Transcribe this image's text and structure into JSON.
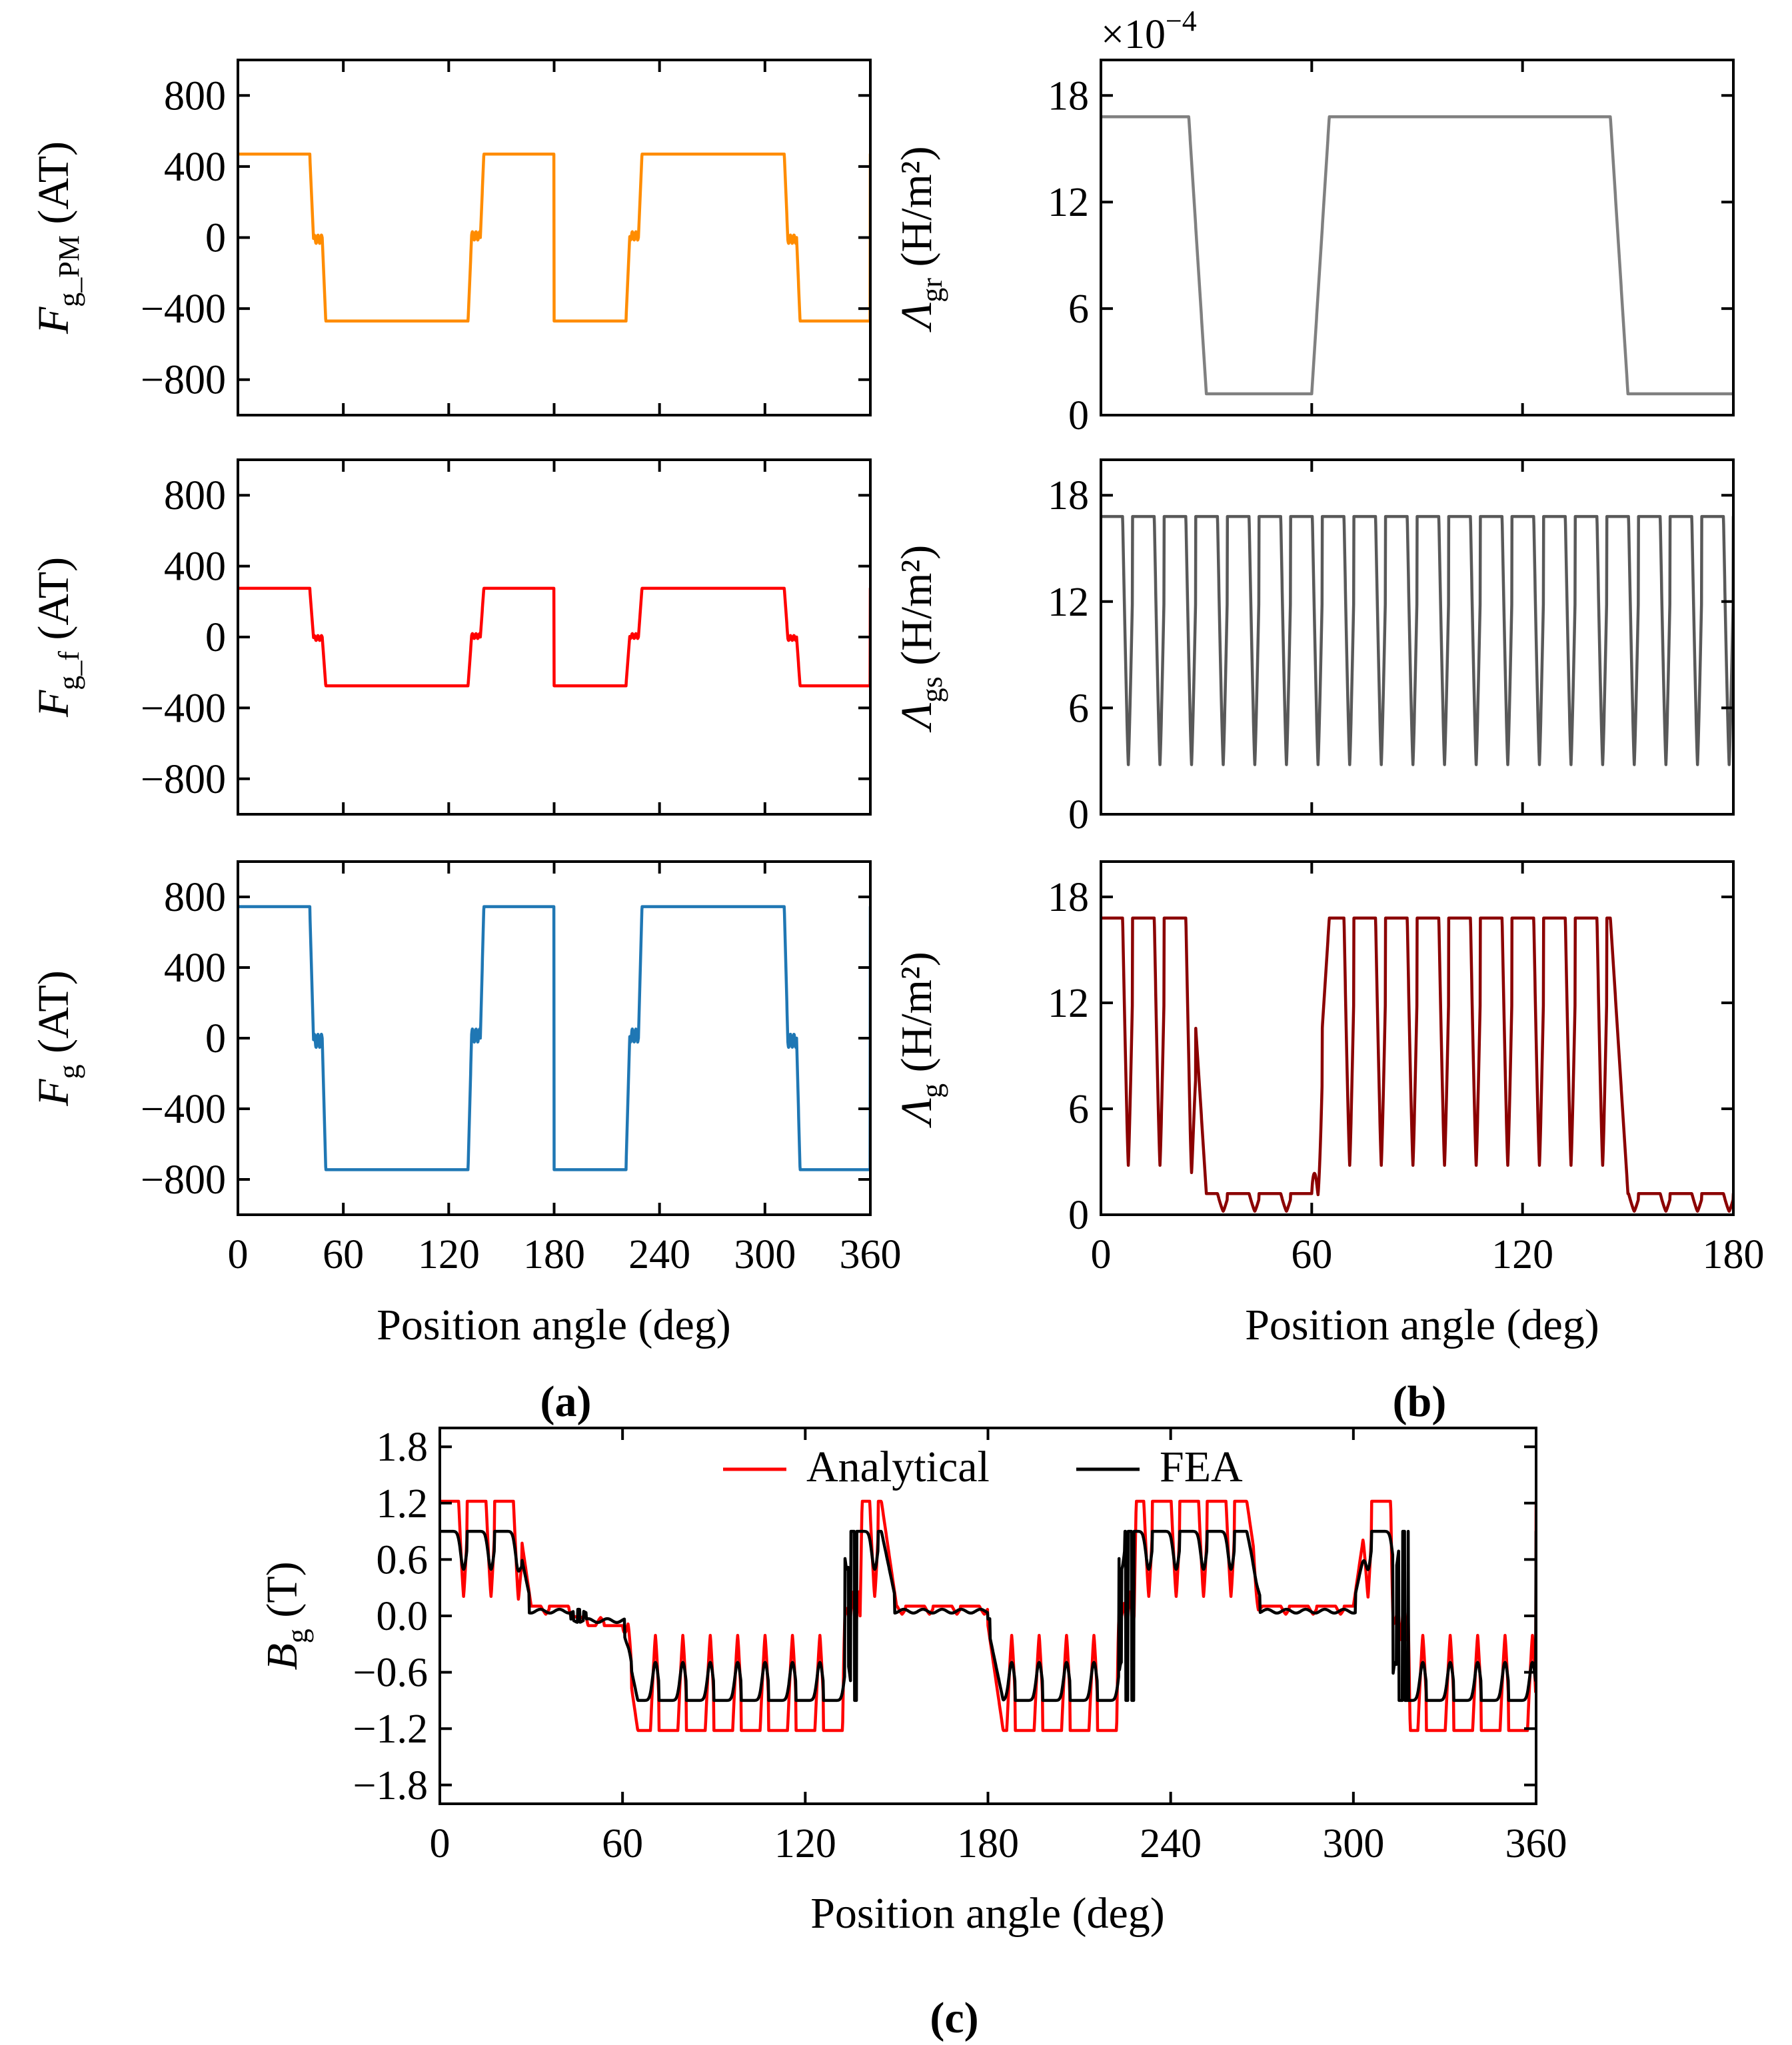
{
  "figure": {
    "panel_labels": [
      "(a)",
      "(b)",
      "(c)"
    ],
    "x_axis_label": "Position angle (deg)"
  },
  "chart_data": [
    {
      "id": "a1",
      "type": "line",
      "ylabel_main": "F",
      "ylabel_sub": "g_PM",
      "ylabel_unit": "(AT)",
      "xlim": [
        0,
        360
      ],
      "ylim": [
        -1000,
        1000
      ],
      "xticks": [
        0,
        60,
        120,
        180,
        240,
        300,
        360
      ],
      "show_xticklabels": false,
      "yticks": [
        -800,
        -400,
        0,
        400,
        800
      ],
      "ytick_labels": [
        "−800",
        "−400",
        "0",
        "400",
        "800"
      ],
      "color": "#ff8c00",
      "series": [
        {
          "name": "F_g_PM",
          "shape": "mmf",
          "amplitude": 470
        }
      ]
    },
    {
      "id": "a2",
      "type": "line",
      "ylabel_main": "F",
      "ylabel_sub": "g_f",
      "ylabel_unit": "(AT)",
      "xlim": [
        0,
        360
      ],
      "ylim": [
        -1000,
        1000
      ],
      "xticks": [
        0,
        60,
        120,
        180,
        240,
        300,
        360
      ],
      "show_xticklabels": false,
      "yticks": [
        -800,
        -400,
        0,
        400,
        800
      ],
      "ytick_labels": [
        "−800",
        "−400",
        "0",
        "400",
        "800"
      ],
      "color": "#ff0000",
      "series": [
        {
          "name": "F_g_f",
          "shape": "mmf",
          "amplitude": 275
        }
      ]
    },
    {
      "id": "a3",
      "type": "line",
      "ylabel_main": "F",
      "ylabel_sub": "g",
      "ylabel_unit": "(AT)",
      "xlim": [
        0,
        360
      ],
      "ylim": [
        -1000,
        1000
      ],
      "xticks": [
        0,
        60,
        120,
        180,
        240,
        300,
        360
      ],
      "show_xticklabels": true,
      "xtick_labels": [
        "0",
        "60",
        "120",
        "180",
        "240",
        "300",
        "360"
      ],
      "yticks": [
        -800,
        -400,
        0,
        400,
        800
      ],
      "ytick_labels": [
        "−800",
        "−400",
        "0",
        "400",
        "800"
      ],
      "color": "#1f77b4",
      "series": [
        {
          "name": "F_g",
          "shape": "mmf",
          "amplitude": 745
        }
      ]
    },
    {
      "id": "b1",
      "type": "line",
      "ylabel_main": "Λ",
      "ylabel_sub": "gr",
      "ylabel_unit": "(H/m²)",
      "multiplier_text": "×10",
      "multiplier_exp": "−4",
      "xlim": [
        0,
        180
      ],
      "ylim": [
        0,
        20
      ],
      "xticks": [
        0,
        60,
        120,
        180
      ],
      "show_xticklabels": false,
      "yticks": [
        0,
        6,
        12,
        18
      ],
      "ytick_labels": [
        "0",
        "6",
        "12",
        "18"
      ],
      "color": "#808080",
      "series": [
        {
          "name": "Λ_gr",
          "shape": "rotor_permeance",
          "high": 16.8,
          "low": 1.2
        }
      ]
    },
    {
      "id": "b2",
      "type": "line",
      "ylabel_main": "Λ",
      "ylabel_sub": "gs",
      "ylabel_unit": "(H/m²)",
      "xlim": [
        0,
        180
      ],
      "ylim": [
        0,
        20
      ],
      "xticks": [
        0,
        60,
        120,
        180
      ],
      "show_xticklabels": false,
      "yticks": [
        0,
        6,
        12,
        18
      ],
      "ytick_labels": [
        "0",
        "6",
        "12",
        "18"
      ],
      "color": "#595959",
      "series": [
        {
          "name": "Λ_gs",
          "shape": "stator_permeance",
          "high": 16.8,
          "low": 2.8,
          "slot_pitch": 9
        }
      ]
    },
    {
      "id": "b3",
      "type": "line",
      "ylabel_main": "Λ",
      "ylabel_sub": "g",
      "ylabel_unit": "(H/m²)",
      "xlim": [
        0,
        180
      ],
      "ylim": [
        0,
        20
      ],
      "xticks": [
        0,
        60,
        120,
        180
      ],
      "show_xticklabels": true,
      "xtick_labels": [
        "0",
        "60",
        "120",
        "180"
      ],
      "yticks": [
        0,
        6,
        12,
        18
      ],
      "ytick_labels": [
        "0",
        "6",
        "12",
        "18"
      ],
      "color": "#8b0000",
      "series": [
        {
          "name": "Λ_g",
          "shape": "product_permeance"
        }
      ]
    },
    {
      "id": "c",
      "type": "line",
      "ylabel_main": "B",
      "ylabel_sub": "g",
      "ylabel_unit": "(T)",
      "xlim": [
        0,
        360
      ],
      "ylim": [
        -2.0,
        2.0
      ],
      "xticks": [
        0,
        60,
        120,
        180,
        240,
        300,
        360
      ],
      "show_xticklabels": true,
      "xtick_labels": [
        "0",
        "60",
        "120",
        "180",
        "240",
        "300",
        "360"
      ],
      "yticks": [
        -1.8,
        -1.2,
        -0.6,
        0.0,
        0.6,
        1.2,
        1.8
      ],
      "ytick_labels": [
        "−1.8",
        "−1.2",
        "−0.6",
        "0.0",
        "0.6",
        "1.2",
        "1.8"
      ],
      "legend_position": "upper-center",
      "series": [
        {
          "name": "Analytical",
          "color": "#ff0000",
          "shape": "flux_analytical",
          "peak": 1.22
        },
        {
          "name": "FEA",
          "color": "#000000",
          "shape": "flux_fea",
          "peak": 1.05
        }
      ]
    }
  ]
}
